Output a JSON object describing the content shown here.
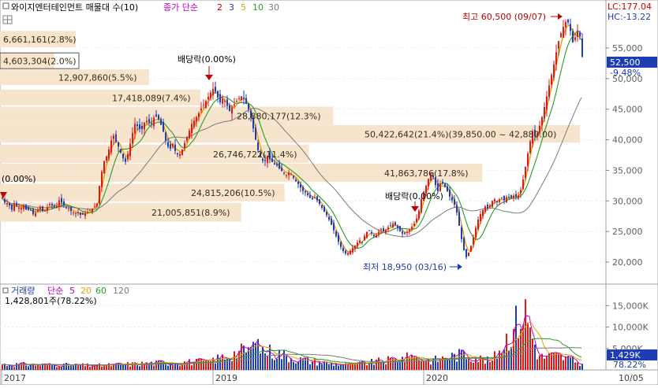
{
  "header": {
    "stock_title": "와이지엔터테인먼트 매물대 수(10)",
    "ma_label": "종가 단순",
    "ma_periods": [
      "2",
      "3",
      "5",
      "10",
      "30"
    ],
    "ma_colors": [
      "#c00000",
      "#1e3cb4",
      "#e6a000",
      "#2a9a2a",
      "#7a7a7a"
    ]
  },
  "top_right": {
    "lc": "LC:177.04",
    "hc": "HC:-13.22"
  },
  "annotations": {
    "high": "최고 60,500 (09/07)",
    "low": "최저 18,950 (03/16)",
    "dividend_1": "배당락(0.00%)",
    "dividend_2": "배당락(0.00%)",
    "left_pct": "(0.00%)"
  },
  "price_panel": {
    "current_price": "52,500",
    "current_change": "-9.48%",
    "yaxis_ticks": [
      "55,000",
      "50,000",
      "45,000",
      "40,000",
      "35,000",
      "30,000",
      "25,000",
      "20,000"
    ]
  },
  "volume_panel": {
    "label": "거래량",
    "ma_label": "단순",
    "ma_periods": [
      "5",
      "20",
      "60",
      "120"
    ],
    "ma_colors": [
      "#c000c0",
      "#e6a000",
      "#2a9a2a",
      "#7a7a7a"
    ],
    "last_value": "1,428,801주(78.22%)",
    "current_badge": "1,429K",
    "current_pct": "78.22%",
    "yaxis_ticks": [
      "15,000K",
      "10,000K",
      "5,000K"
    ]
  },
  "x_axis": {
    "labels": [
      "2017",
      "2019",
      "2020",
      "10/05"
    ]
  },
  "chart_data": {
    "type": "candlestick",
    "volume_profile": [
      {
        "label": "6,661,161(2.8%)",
        "price_low": 55000,
        "price_high": 57800
      },
      {
        "label": "4,603,304(2.0%)",
        "price_low": 51500,
        "price_high": 54200
      },
      {
        "label": "12,907,860(5.5%)",
        "price_low": 48800,
        "price_high": 51500
      },
      {
        "label": "17,418,089(7.4%)",
        "price_low": 45500,
        "price_high": 48200
      },
      {
        "label": "28,880,177(12.3%)",
        "price_low": 42300,
        "price_high": 45400
      },
      {
        "label": "50,422,642(21.4%)(39,850.00 ~ 42,880.00)",
        "price_low": 39400,
        "price_high": 42400
      },
      {
        "label": "26,746,722(11.4%)",
        "price_low": 36100,
        "price_high": 39200
      },
      {
        "label": "41,863,786(17.8%)",
        "price_low": 33000,
        "price_high": 36100
      },
      {
        "label": "24,815,206(10.5%)",
        "price_low": 29800,
        "price_high": 32800
      },
      {
        "label": "21,005,851(8.9%)",
        "price_low": 26500,
        "price_high": 29700
      }
    ],
    "price_range": [
      18000,
      62000
    ],
    "volume_range": [
      0,
      18000
    ],
    "close_path": [
      [
        0,
        30500
      ],
      [
        4,
        29500
      ],
      [
        8,
        29800
      ],
      [
        11,
        28200
      ],
      [
        15,
        29600
      ],
      [
        19,
        29000
      ],
      [
        23,
        28800
      ],
      [
        27,
        29200
      ],
      [
        31,
        28400
      ],
      [
        35,
        28700
      ],
      [
        40,
        27600
      ],
      [
        44,
        28400
      ],
      [
        48,
        29000
      ],
      [
        52,
        28100
      ],
      [
        56,
        28800
      ],
      [
        60,
        29500
      ],
      [
        64,
        29200
      ],
      [
        68,
        28900
      ],
      [
        72,
        30100
      ],
      [
        76,
        29600
      ],
      [
        80,
        29000
      ],
      [
        84,
        28800
      ],
      [
        88,
        28200
      ],
      [
        92,
        28000
      ],
      [
        96,
        28100
      ],
      [
        100,
        27600
      ],
      [
        104,
        27900
      ],
      [
        108,
        28200
      ],
      [
        112,
        28600
      ],
      [
        116,
        28900
      ],
      [
        120,
        29600
      ],
      [
        124,
        33400
      ],
      [
        128,
        36200
      ],
      [
        132,
        37300
      ],
      [
        136,
        38800
      ],
      [
        140,
        41000
      ],
      [
        144,
        39700
      ],
      [
        148,
        38600
      ],
      [
        152,
        37200
      ],
      [
        156,
        36400
      ],
      [
        160,
        38100
      ],
      [
        164,
        40600
      ],
      [
        168,
        42600
      ],
      [
        172,
        42100
      ],
      [
        176,
        41400
      ],
      [
        180,
        42800
      ],
      [
        184,
        43200
      ],
      [
        188,
        42400
      ],
      [
        192,
        43600
      ],
      [
        196,
        43900
      ],
      [
        200,
        42800
      ],
      [
        204,
        41300
      ],
      [
        208,
        39400
      ],
      [
        212,
        38300
      ],
      [
        216,
        39300
      ],
      [
        220,
        37800
      ],
      [
        224,
        37400
      ],
      [
        228,
        38400
      ],
      [
        232,
        39800
      ],
      [
        236,
        41100
      ],
      [
        240,
        42600
      ],
      [
        244,
        43300
      ],
      [
        248,
        44100
      ],
      [
        252,
        45100
      ],
      [
        256,
        45900
      ],
      [
        260,
        46800
      ],
      [
        264,
        47700
      ],
      [
        268,
        48500
      ],
      [
        272,
        47200
      ],
      [
        276,
        46100
      ],
      [
        280,
        46900
      ],
      [
        284,
        45800
      ],
      [
        288,
        44700
      ],
      [
        292,
        45500
      ],
      [
        296,
        46100
      ],
      [
        300,
        46800
      ],
      [
        304,
        47200
      ],
      [
        308,
        46200
      ],
      [
        312,
        45000
      ],
      [
        316,
        43100
      ],
      [
        320,
        40600
      ],
      [
        324,
        38300
      ],
      [
        328,
        36900
      ],
      [
        332,
        36200
      ],
      [
        336,
        37400
      ],
      [
        340,
        36700
      ],
      [
        344,
        36000
      ],
      [
        348,
        35800
      ],
      [
        352,
        35100
      ],
      [
        356,
        34600
      ],
      [
        360,
        34200
      ],
      [
        364,
        34800
      ],
      [
        368,
        34000
      ],
      [
        372,
        33200
      ],
      [
        376,
        32600
      ],
      [
        380,
        31700
      ],
      [
        384,
        31400
      ],
      [
        388,
        30800
      ],
      [
        392,
        30200
      ],
      [
        396,
        30600
      ],
      [
        400,
        29900
      ],
      [
        404,
        29100
      ],
      [
        408,
        28200
      ],
      [
        412,
        27500
      ],
      [
        416,
        26400
      ],
      [
        420,
        25200
      ],
      [
        424,
        23900
      ],
      [
        428,
        22700
      ],
      [
        432,
        21800
      ],
      [
        436,
        21300
      ],
      [
        440,
        21700
      ],
      [
        444,
        22300
      ],
      [
        448,
        22800
      ],
      [
        452,
        23600
      ],
      [
        456,
        23300
      ],
      [
        460,
        24600
      ],
      [
        464,
        25200
      ],
      [
        468,
        24700
      ],
      [
        472,
        24100
      ],
      [
        476,
        24800
      ],
      [
        480,
        25400
      ],
      [
        484,
        24900
      ],
      [
        488,
        25600
      ],
      [
        492,
        25900
      ],
      [
        496,
        26400
      ],
      [
        500,
        25800
      ],
      [
        504,
        25100
      ],
      [
        508,
        24500
      ],
      [
        512,
        24800
      ],
      [
        516,
        25300
      ],
      [
        520,
        25900
      ],
      [
        524,
        26700
      ],
      [
        528,
        28400
      ],
      [
        532,
        30900
      ],
      [
        536,
        32100
      ],
      [
        540,
        33600
      ],
      [
        544,
        34800
      ],
      [
        548,
        32900
      ],
      [
        552,
        31600
      ],
      [
        556,
        33200
      ],
      [
        560,
        32500
      ],
      [
        564,
        31600
      ],
      [
        568,
        30400
      ],
      [
        572,
        29800
      ],
      [
        576,
        28100
      ],
      [
        580,
        25200
      ],
      [
        584,
        22300
      ],
      [
        588,
        20800
      ],
      [
        592,
        21800
      ],
      [
        596,
        23500
      ],
      [
        600,
        25600
      ],
      [
        604,
        27400
      ],
      [
        608,
        28300
      ],
      [
        612,
        29100
      ],
      [
        616,
        28700
      ],
      [
        620,
        29900
      ],
      [
        624,
        30300
      ],
      [
        628,
        29800
      ],
      [
        632,
        30600
      ],
      [
        636,
        30100
      ],
      [
        640,
        30800
      ],
      [
        644,
        30400
      ],
      [
        648,
        30900
      ],
      [
        652,
        30600
      ],
      [
        656,
        31200
      ],
      [
        660,
        33500
      ],
      [
        664,
        36300
      ],
      [
        668,
        39200
      ],
      [
        672,
        41400
      ],
      [
        676,
        40300
      ],
      [
        680,
        41800
      ],
      [
        684,
        43700
      ],
      [
        688,
        45900
      ],
      [
        692,
        48300
      ],
      [
        696,
        50600
      ],
      [
        700,
        52900
      ],
      [
        704,
        55700
      ],
      [
        708,
        57400
      ],
      [
        712,
        58800
      ],
      [
        716,
        59700
      ],
      [
        720,
        57800
      ],
      [
        724,
        55300
      ],
      [
        728,
        58200
      ],
      [
        732,
        56900
      ],
      [
        736,
        52500
      ]
    ],
    "volume_bars": [
      [
        40,
        1500
      ],
      [
        120,
        1200
      ],
      [
        205,
        2000
      ],
      [
        260,
        2300
      ],
      [
        320,
        6200
      ],
      [
        380,
        2700
      ],
      [
        440,
        1300
      ],
      [
        520,
        3500
      ],
      [
        545,
        2600
      ],
      [
        585,
        4400
      ],
      [
        620,
        2200
      ],
      [
        662,
        16500
      ],
      [
        680,
        3400
      ],
      [
        700,
        4000
      ],
      [
        720,
        2900
      ],
      [
        736,
        1429
      ]
    ]
  }
}
